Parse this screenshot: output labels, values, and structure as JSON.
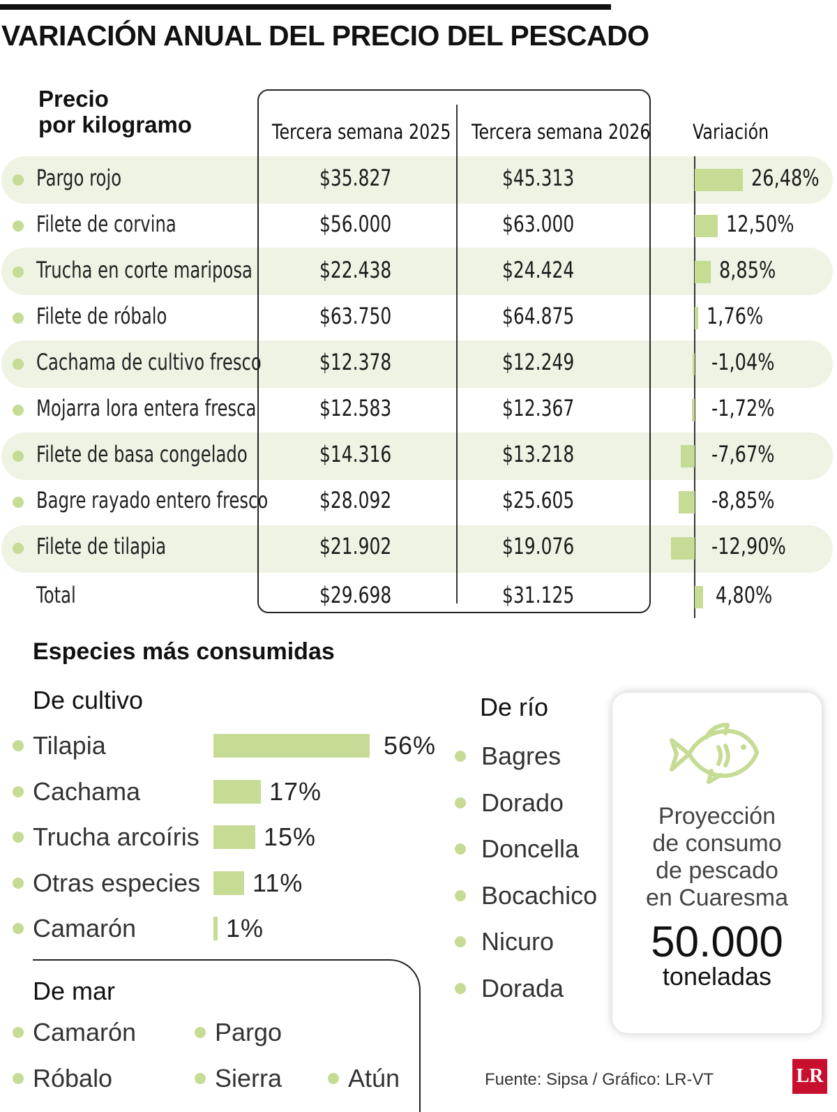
{
  "title": "VARIACIÓN ANUAL DEL PRECIO DEL PESCADO",
  "table": {
    "row_header_line1": "Precio",
    "row_header_line2": "por kilogramo",
    "col_2025": "Tercera semana 2025",
    "col_2026": "Tercera semana 2026",
    "col_variation": "Variación",
    "total_label": "Total",
    "total_2025": "$29.698",
    "total_2026": "$31.125",
    "total_variation": "4,80%",
    "total_variation_value": 4.8
  },
  "chart_data": [
    {
      "type": "table",
      "title": "VARIACIÓN ANUAL DEL PRECIO DEL PESCADO",
      "columns": [
        "Precio por kilogramo",
        "Tercera semana 2025",
        "Tercera semana 2026",
        "Variación"
      ],
      "rows": [
        {
          "name": "Pargo rojo",
          "p2025": "$35.827",
          "p2026": "$45.313",
          "variation": 26.48,
          "variation_label": "26,48%"
        },
        {
          "name": "Filete de corvina",
          "p2025": "$56.000",
          "p2026": "$63.000",
          "variation": 12.5,
          "variation_label": "12,50%"
        },
        {
          "name": "Trucha en corte mariposa",
          "p2025": "$22.438",
          "p2026": "$24.424",
          "variation": 8.85,
          "variation_label": "8,85%"
        },
        {
          "name": "Filete de róbalo",
          "p2025": "$63.750",
          "p2026": "$64.875",
          "variation": 1.76,
          "variation_label": "1,76%"
        },
        {
          "name": "Cachama de cultivo fresco",
          "p2025": "$12.378",
          "p2026": "$12.249",
          "variation": -1.04,
          "variation_label": "-1,04%"
        },
        {
          "name": "Mojarra lora entera fresca",
          "p2025": "$12.583",
          "p2026": "$12.367",
          "variation": -1.72,
          "variation_label": "-1,72%"
        },
        {
          "name": "Filete de basa congelado",
          "p2025": "$14.316",
          "p2026": "$13.218",
          "variation": -7.67,
          "variation_label": "-7,67%"
        },
        {
          "name": "Bagre rayado entero fresco",
          "p2025": "$28.092",
          "p2026": "$25.605",
          "variation": -8.85,
          "variation_label": "-8,85%"
        },
        {
          "name": "Filete de tilapia",
          "p2025": "$21.902",
          "p2026": "$19.076",
          "variation": -12.9,
          "variation_label": "-12,90%"
        }
      ]
    },
    {
      "type": "bar",
      "title": "De cultivo",
      "categories": [
        "Tilapia",
        "Cachama",
        "Trucha arcoíris",
        "Otras especies",
        "Camarón"
      ],
      "values": [
        56,
        17,
        15,
        11,
        1
      ],
      "labels": [
        "56%",
        "17%",
        "15%",
        "11%",
        "1%"
      ]
    }
  ],
  "species": {
    "title": "Especies más consumidas",
    "cultivo_title": "De cultivo",
    "rio_title": "De río",
    "rio": [
      "Bagres",
      "Dorado",
      "Doncella",
      "Bocachico",
      "Nicuro",
      "Dorada"
    ],
    "mar_title": "De mar",
    "mar": [
      "Camarón",
      "Pargo",
      "Róbalo",
      "Sierra",
      "Atún"
    ]
  },
  "card": {
    "icon": "fish-icon",
    "line1": "Proyección",
    "line2": "de consumo",
    "line3": "de pescado",
    "line4": "en Cuaresma",
    "number": "50.000",
    "unit": "toneladas"
  },
  "source": "Fuente: Sipsa / Gráfico: LR-VT",
  "logo": "LR",
  "colors": {
    "accent": "#c6db94",
    "band": "#eef3e3",
    "logo": "#c8102e"
  }
}
